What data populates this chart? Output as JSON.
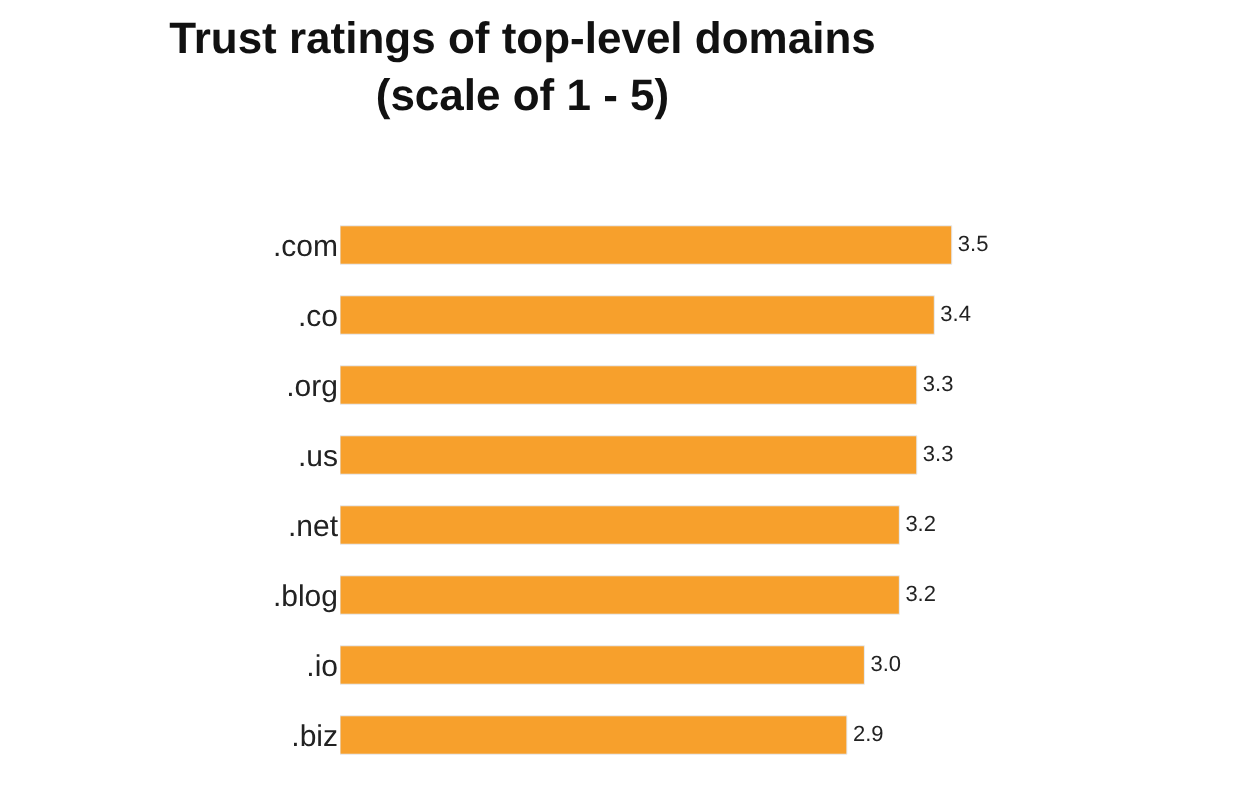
{
  "chart_data": {
    "type": "bar",
    "orientation": "horizontal",
    "title": "Trust ratings of top-level domains\n(scale of 1 - 5)",
    "categories": [
      ".com",
      ".co",
      ".org",
      ".us",
      ".net",
      ".blog",
      ".io",
      ".biz"
    ],
    "values": [
      3.5,
      3.4,
      3.3,
      3.3,
      3.2,
      3.2,
      3.0,
      2.9
    ],
    "value_labels": [
      "3.5",
      "3.4",
      "3.3",
      "3.3",
      "3.2",
      "3.2",
      "3.0",
      "2.9"
    ],
    "color": "#f7a02c",
    "tick_labels": "y"
  }
}
